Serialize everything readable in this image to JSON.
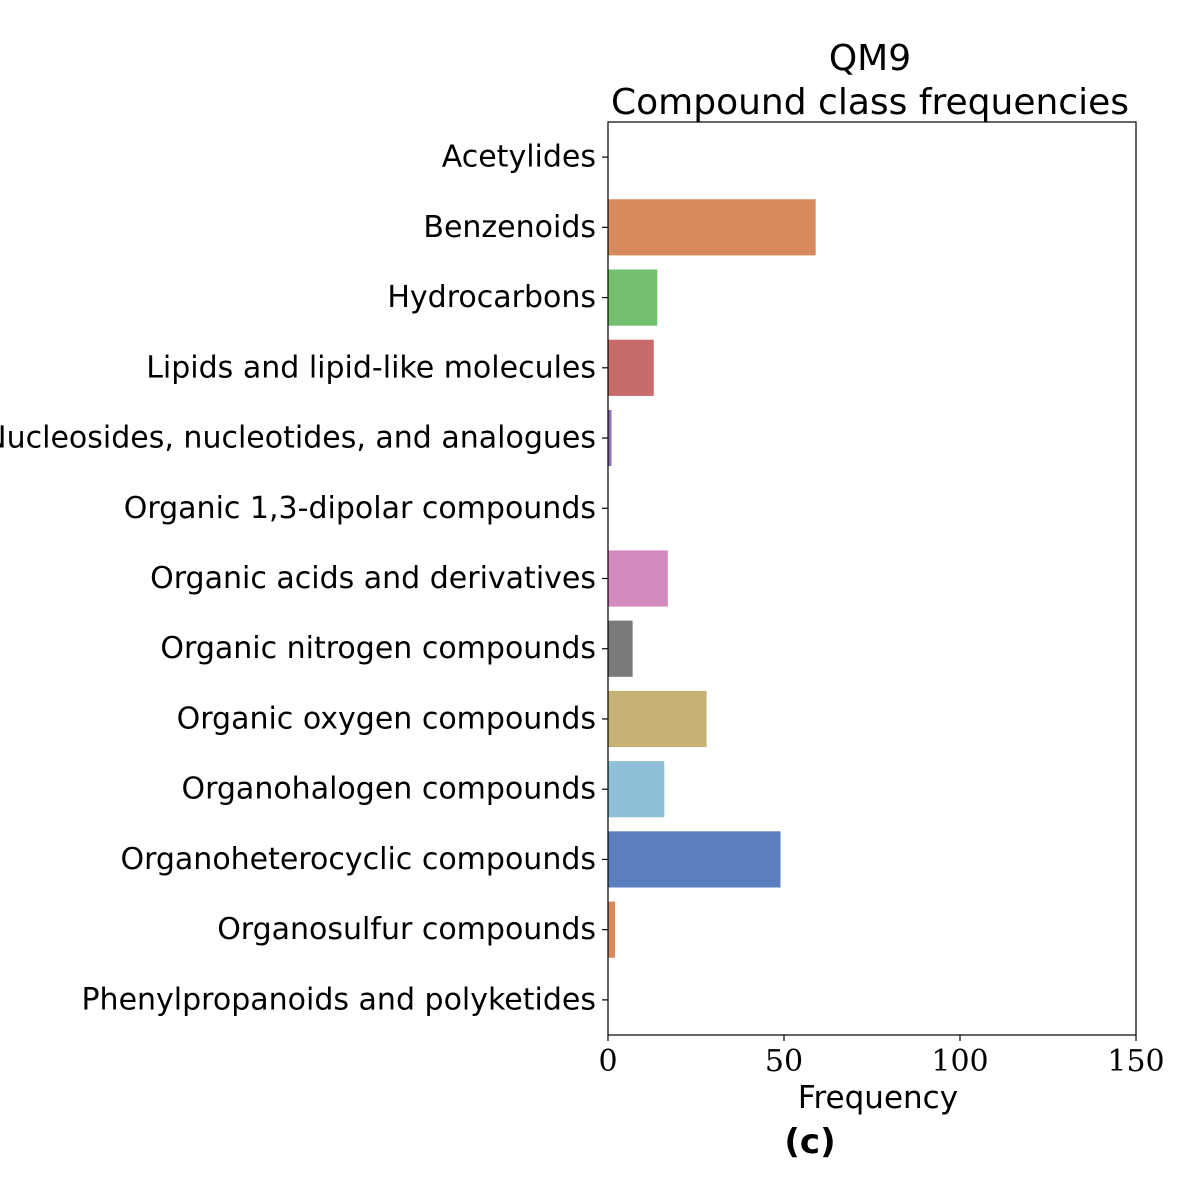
{
  "chart_data": {
    "type": "bar",
    "orientation": "horizontal",
    "title_line1": "QM9",
    "title_line2": "Compound class frequencies",
    "xlabel": "Frequency",
    "ylabel": "",
    "xlim": [
      0,
      150
    ],
    "xticks": [
      "0",
      "50",
      "100",
      "150"
    ],
    "caption": "(c)",
    "grid": false,
    "categories": [
      "Acetylides",
      "Benzenoids",
      "Hydrocarbons",
      "Lipids and lipid-like molecules",
      "Nucleosides, nucleotides, and analogues",
      "Organic 1,3-dipolar compounds",
      "Organic acids and derivatives",
      "Organic nitrogen compounds",
      "Organic oxygen compounds",
      "Organohalogen compounds",
      "Organoheterocyclic compounds",
      "Organosulfur compounds",
      "Phenylpropanoids and polyketides"
    ],
    "values": [
      0,
      59,
      14,
      13,
      1,
      0,
      17,
      7,
      28,
      16,
      49,
      2,
      0
    ],
    "colors": [
      "#5b7ec0",
      "#d98a5d",
      "#72bf6e",
      "#c86b6b",
      "#8c72b0",
      "#8c6a5a",
      "#d38bbf",
      "#7a7a7a",
      "#c6b274",
      "#8ec0d7",
      "#5b7ec0",
      "#d98a5d",
      "#72bf6e"
    ]
  }
}
